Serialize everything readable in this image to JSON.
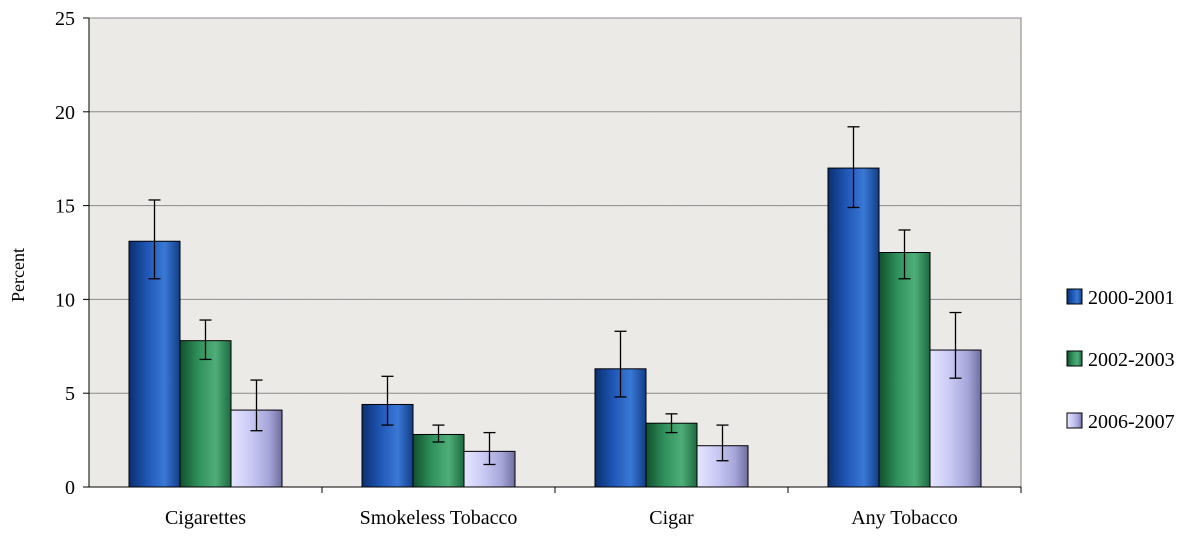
{
  "chart_data": {
    "type": "bar",
    "title": "",
    "xlabel": "",
    "ylabel": "Percent",
    "ylim": [
      0,
      25
    ],
    "yticks": [
      0,
      5,
      10,
      15,
      20,
      25
    ],
    "grid": true,
    "legend_position": "right",
    "error_bars": true,
    "categories": [
      "Cigarettes",
      "Smokeless Tobacco",
      "Cigar",
      "Any Tobacco"
    ],
    "series": [
      {
        "name": "2000-2001",
        "color": "#1f56b4",
        "values": [
          13.1,
          4.4,
          6.3,
          17.0
        ],
        "error_low": [
          11.1,
          3.3,
          4.8,
          14.9
        ],
        "error_high": [
          15.3,
          5.9,
          8.3,
          19.2
        ]
      },
      {
        "name": "2002-2003",
        "color": "#2f8f5b",
        "values": [
          7.8,
          2.8,
          3.4,
          12.5
        ],
        "error_low": [
          6.8,
          2.4,
          2.9,
          11.1
        ],
        "error_high": [
          8.9,
          3.3,
          3.9,
          13.7
        ]
      },
      {
        "name": "2006-2007",
        "color": "#bcbcf0",
        "values": [
          4.1,
          1.9,
          2.2,
          7.3
        ],
        "error_low": [
          3.0,
          1.2,
          1.4,
          5.8
        ],
        "error_high": [
          5.7,
          2.9,
          3.3,
          9.3
        ]
      }
    ]
  }
}
